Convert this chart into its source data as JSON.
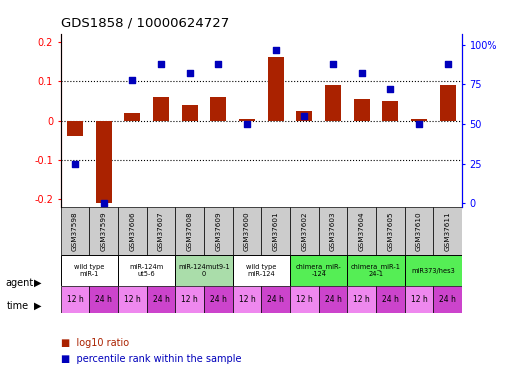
{
  "title": "GDS1858 / 10000624727",
  "samples": [
    "GSM37598",
    "GSM37599",
    "GSM37606",
    "GSM37607",
    "GSM37608",
    "GSM37609",
    "GSM37600",
    "GSM37601",
    "GSM37602",
    "GSM37603",
    "GSM37604",
    "GSM37605",
    "GSM37610",
    "GSM37611"
  ],
  "log10_ratio": [
    -0.04,
    -0.21,
    0.02,
    0.06,
    0.04,
    0.06,
    0.005,
    0.16,
    0.025,
    0.09,
    0.055,
    0.05,
    0.005,
    0.09
  ],
  "percentile_rank": [
    25,
    0,
    78,
    88,
    82,
    88,
    50,
    97,
    55,
    88,
    82,
    72,
    50,
    88
  ],
  "ylim_left": [
    -0.22,
    0.22
  ],
  "ylim_right": [
    -2.5,
    107
  ],
  "yticks_left": [
    -0.2,
    -0.1,
    0.0,
    0.1,
    0.2
  ],
  "yticks_right": [
    0,
    25,
    50,
    75,
    100
  ],
  "ytick_labels_right": [
    "0",
    "25",
    "50",
    "75",
    "100%"
  ],
  "agent_groups": [
    {
      "label": "wild type\nmiR-1",
      "start": 0,
      "end": 2,
      "color": "#ffffff"
    },
    {
      "label": "miR-124m\nut5-6",
      "start": 2,
      "end": 4,
      "color": "#ffffff"
    },
    {
      "label": "miR-124mut9-1\n0",
      "start": 4,
      "end": 6,
      "color": "#aaddaa"
    },
    {
      "label": "wild type\nmiR-124",
      "start": 6,
      "end": 8,
      "color": "#ffffff"
    },
    {
      "label": "chimera_miR-\n-124",
      "start": 8,
      "end": 10,
      "color": "#55ee55"
    },
    {
      "label": "chimera_miR-1\n24-1",
      "start": 10,
      "end": 12,
      "color": "#55ee55"
    },
    {
      "label": "miR373/hes3",
      "start": 12,
      "end": 14,
      "color": "#55ee55"
    }
  ],
  "time_labels": [
    "12 h",
    "24 h",
    "12 h",
    "24 h",
    "12 h",
    "24 h",
    "12 h",
    "24 h",
    "12 h",
    "24 h",
    "12 h",
    "24 h",
    "12 h",
    "24 h"
  ],
  "time_color_light": "#ee88ee",
  "time_color_dark": "#cc44cc",
  "bar_color": "#aa2200",
  "dot_color": "#0000bb",
  "bar_width": 0.55,
  "dot_size": 18,
  "legend_bar_label": "log10 ratio",
  "legend_dot_label": "percentile rank within the sample"
}
